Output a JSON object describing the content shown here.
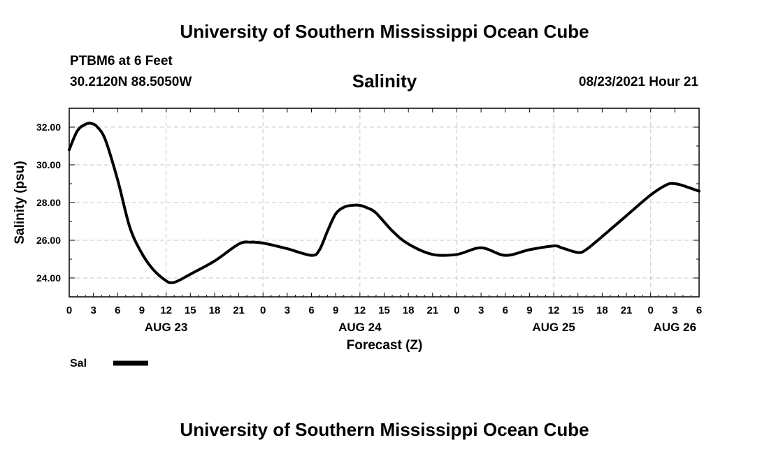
{
  "header": {
    "top_title": "University of Southern Mississippi Ocean Cube",
    "bottom_title": "University of Southern Mississippi Ocean Cube",
    "station": "PTBM6 at 6 Feet",
    "coords": "30.2120N  88.5050W",
    "datetime": "08/23/2021 Hour 21"
  },
  "colors": {
    "line": "#000000",
    "grid": "#c8c8c8"
  },
  "chart_data": {
    "type": "line",
    "title": "Salinity",
    "xlabel": "Forecast (Z)",
    "ylabel": "Salinity (psu)",
    "xlim": [
      0,
      78
    ],
    "ylim": [
      23,
      33
    ],
    "grid": true,
    "x_unit": "hours since 00Z Aug 23",
    "x_ticks": [
      0,
      3,
      6,
      9,
      12,
      15,
      18,
      21,
      24,
      27,
      30,
      33,
      36,
      39,
      42,
      45,
      48,
      51,
      54,
      57,
      60,
      63,
      66,
      69,
      72,
      75,
      78
    ],
    "x_tick_labels": [
      "0",
      "3",
      "6",
      "9",
      "12",
      "15",
      "18",
      "21",
      "0",
      "3",
      "6",
      "9",
      "12",
      "15",
      "18",
      "21",
      "0",
      "3",
      "6",
      "9",
      "12",
      "15",
      "18",
      "21",
      "0",
      "3",
      "6"
    ],
    "y_ticks": [
      24,
      26,
      28,
      30,
      32
    ],
    "y_tick_labels": [
      "24.00",
      "26.00",
      "28.00",
      "30.00",
      "32.00"
    ],
    "date_labels": [
      {
        "x": 12,
        "label": "AUG 23"
      },
      {
        "x": 36,
        "label": "AUG 24"
      },
      {
        "x": 60,
        "label": "AUG 25"
      },
      {
        "x": 75,
        "label": "AUG 26"
      }
    ],
    "legend": {
      "label": "Sal",
      "placement": "bottom-left"
    },
    "series": [
      {
        "name": "Sal",
        "x": [
          0,
          1,
          2,
          2.7,
          3.5,
          4.5,
          6,
          7.5,
          9,
          10.5,
          12,
          12.7,
          13.5,
          15,
          18,
          21,
          22.5,
          24,
          27,
          30,
          31,
          32,
          33,
          34,
          35,
          36,
          37,
          38,
          40,
          42,
          45,
          48,
          51,
          54,
          57,
          60,
          61,
          63,
          64,
          66,
          69,
          72,
          74,
          75,
          76,
          78
        ],
        "values": [
          30.8,
          31.8,
          32.15,
          32.2,
          32.0,
          31.3,
          29.2,
          26.7,
          25.3,
          24.4,
          23.85,
          23.75,
          23.85,
          24.2,
          24.9,
          25.8,
          25.9,
          25.85,
          25.55,
          25.2,
          25.5,
          26.5,
          27.4,
          27.75,
          27.85,
          27.85,
          27.7,
          27.45,
          26.5,
          25.8,
          25.25,
          25.25,
          25.6,
          25.2,
          25.5,
          25.7,
          25.6,
          25.35,
          25.5,
          26.2,
          27.3,
          28.4,
          28.95,
          29.0,
          28.9,
          28.6
        ]
      }
    ]
  }
}
